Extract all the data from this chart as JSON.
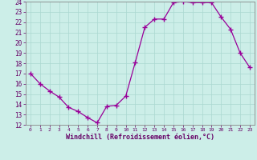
{
  "x": [
    0,
    1,
    2,
    3,
    4,
    5,
    6,
    7,
    8,
    9,
    10,
    11,
    12,
    13,
    14,
    15,
    16,
    17,
    18,
    19,
    20,
    21,
    22,
    23
  ],
  "y": [
    17.0,
    16.0,
    15.3,
    14.7,
    13.7,
    13.3,
    12.7,
    12.2,
    13.8,
    13.9,
    14.8,
    18.1,
    21.5,
    22.3,
    22.3,
    23.9,
    24.0,
    23.9,
    23.9,
    23.9,
    22.5,
    21.3,
    19.0,
    17.6
  ],
  "line_color": "#990099",
  "marker": "+",
  "marker_size": 4,
  "bg_color": "#cceee8",
  "grid_color": "#aad8d0",
  "xlabel": "Windchill (Refroidissement éolien,°C)",
  "ylim": [
    12,
    24
  ],
  "xlim_min": -0.5,
  "xlim_max": 23.5,
  "yticks": [
    12,
    13,
    14,
    15,
    16,
    17,
    18,
    19,
    20,
    21,
    22,
    23,
    24
  ],
  "xticks": [
    0,
    1,
    2,
    3,
    4,
    5,
    6,
    7,
    8,
    9,
    10,
    11,
    12,
    13,
    14,
    15,
    16,
    17,
    18,
    19,
    20,
    21,
    22,
    23
  ],
  "line_color2": "#990099",
  "tick_color": "#660066",
  "label_color": "#660066",
  "spine_color": "#888888"
}
